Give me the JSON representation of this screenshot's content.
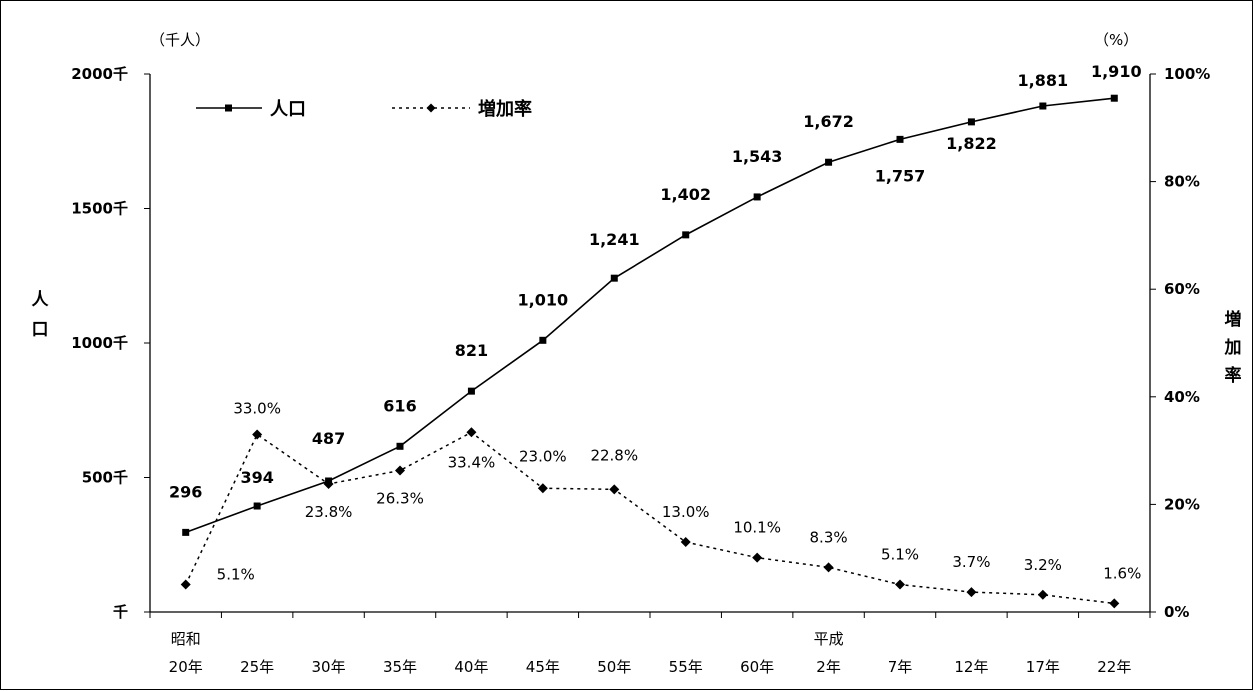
{
  "chart_data": {
    "type": "line",
    "categories": [
      {
        "top": "昭和",
        "bottom": "20年"
      },
      {
        "top": "",
        "bottom": "25年"
      },
      {
        "top": "",
        "bottom": "30年"
      },
      {
        "top": "",
        "bottom": "35年"
      },
      {
        "top": "",
        "bottom": "40年"
      },
      {
        "top": "",
        "bottom": "45年"
      },
      {
        "top": "",
        "bottom": "50年"
      },
      {
        "top": "",
        "bottom": "55年"
      },
      {
        "top": "",
        "bottom": "60年"
      },
      {
        "top": "平成",
        "bottom": "2年"
      },
      {
        "top": "",
        "bottom": "7年"
      },
      {
        "top": "",
        "bottom": "12年"
      },
      {
        "top": "",
        "bottom": "17年"
      },
      {
        "top": "",
        "bottom": "22年"
      }
    ],
    "series": [
      {
        "name": "人口",
        "axis": "left",
        "values": [
          296,
          394,
          487,
          616,
          821,
          1010,
          1241,
          1402,
          1543,
          1672,
          1757,
          1822,
          1881,
          1910
        ],
        "labels": [
          "296",
          "394",
          "487",
          "616",
          "821",
          "1,010",
          "1,241",
          "1,402",
          "1,543",
          "1,672",
          "1,757",
          "1,822",
          "1,881",
          "1,910"
        ]
      },
      {
        "name": "増加率",
        "axis": "right",
        "values": [
          5.1,
          33.0,
          23.8,
          26.3,
          33.4,
          23.0,
          22.8,
          13.0,
          10.1,
          8.3,
          5.1,
          3.7,
          3.2,
          1.6
        ],
        "labels": [
          "5.1%",
          "33.0%",
          "23.8%",
          "26.3%",
          "33.4%",
          "23.0%",
          "22.8%",
          "13.0%",
          "10.1%",
          "8.3%",
          "5.1%",
          "3.7%",
          "3.2%",
          "1.6%"
        ]
      }
    ],
    "y_left": {
      "label": "人口",
      "unit": "（千人）",
      "range": [
        0,
        2000
      ],
      "ticks": [
        0,
        500,
        1000,
        1500,
        2000
      ],
      "tick_labels": [
        "千",
        "500千",
        "1000千",
        "1500千",
        "2000千"
      ]
    },
    "y_right": {
      "label": "増加率",
      "unit": "（%）",
      "range": [
        0,
        100
      ],
      "ticks": [
        0,
        20,
        40,
        60,
        80,
        100
      ],
      "tick_labels": [
        "0%",
        "20%",
        "40%",
        "60%",
        "80%",
        "100%"
      ]
    },
    "legend": {
      "placement": "top-left"
    },
    "grid": false
  }
}
